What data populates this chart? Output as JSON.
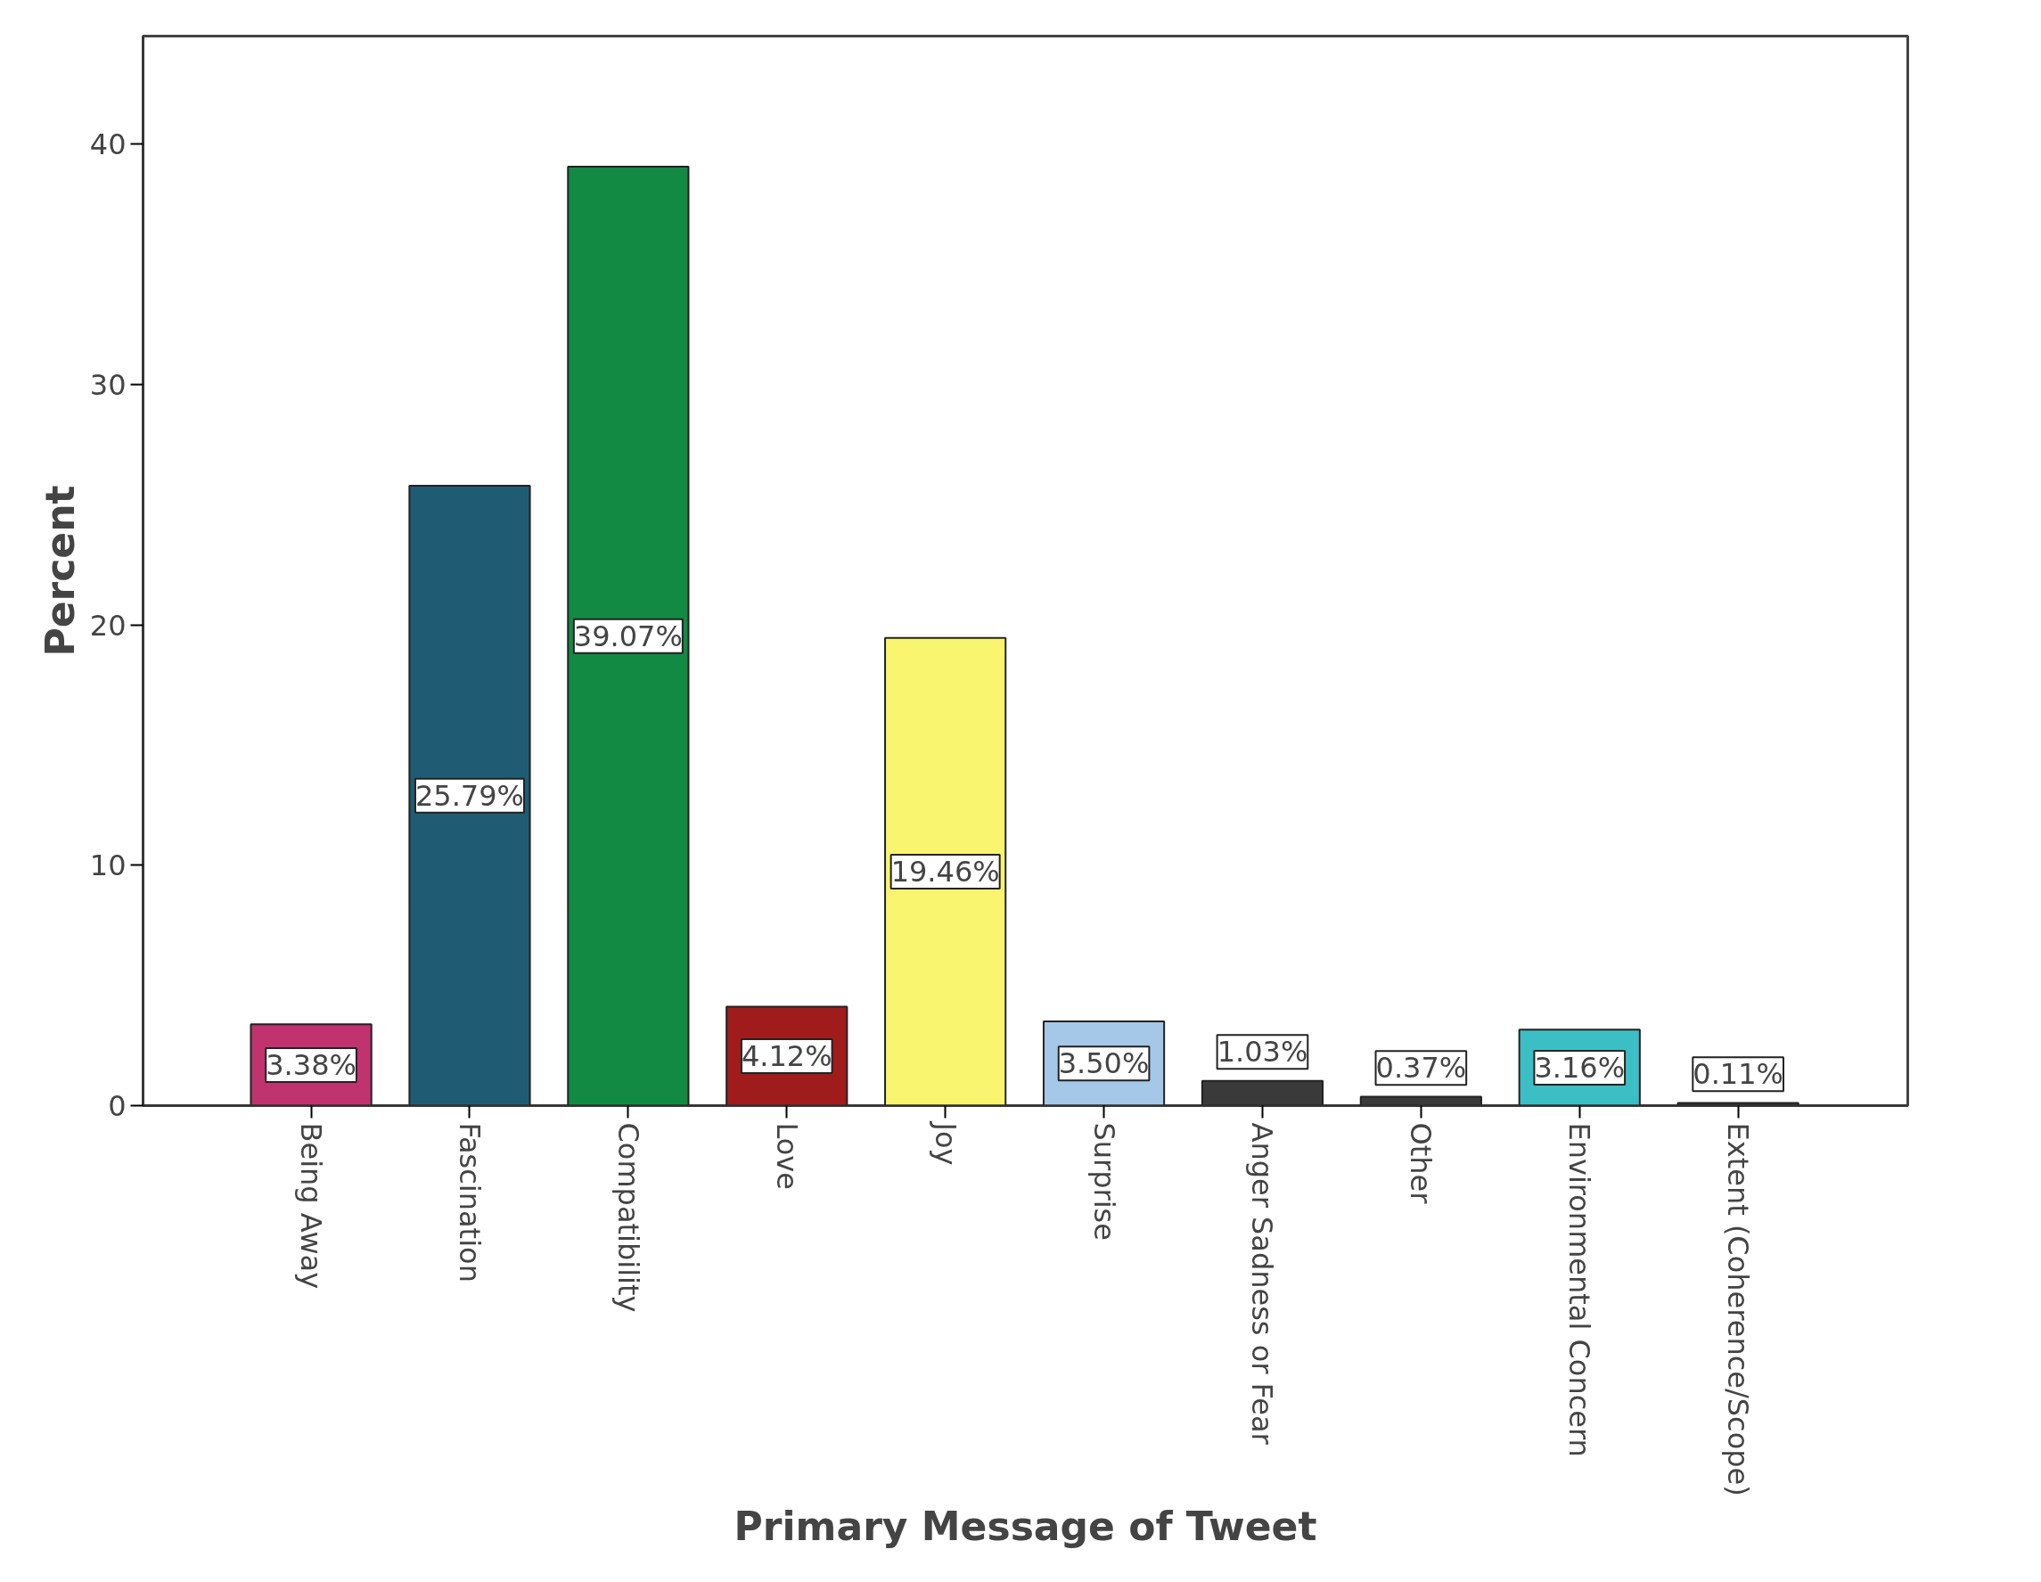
{
  "chart_data": {
    "type": "bar",
    "xlabel": "Primary Message of Tweet",
    "ylabel": "Percent",
    "categories": [
      "Being Away",
      "Fascination",
      "Compatibility",
      "Love",
      "Joy",
      "Surprise",
      "Anger Sadness or Fear",
      "Other",
      "Environmental Concern",
      "Extent (Coherence/Scope)"
    ],
    "values": [
      3.38,
      25.79,
      39.07,
      4.12,
      19.46,
      3.5,
      1.03,
      0.37,
      3.16,
      0.11
    ],
    "colors": [
      "#c0336e",
      "#1f5c73",
      "#128a44",
      "#a01c1c",
      "#f9f56e",
      "#a6c8e8",
      "#3a3a3a",
      "#3a3a3a",
      "#3bbfc4",
      "#3a3a3a"
    ],
    "value_labels": [
      "3.38%",
      "25.79%",
      "39.07%",
      "4.12%",
      "19.46%",
      "3.50%",
      "1.03%",
      "0.37%",
      "3.16%",
      "0.11%"
    ],
    "ylim": [
      0,
      44.5
    ],
    "yticks": [
      0,
      10,
      20,
      30,
      40
    ],
    "grid": false
  }
}
